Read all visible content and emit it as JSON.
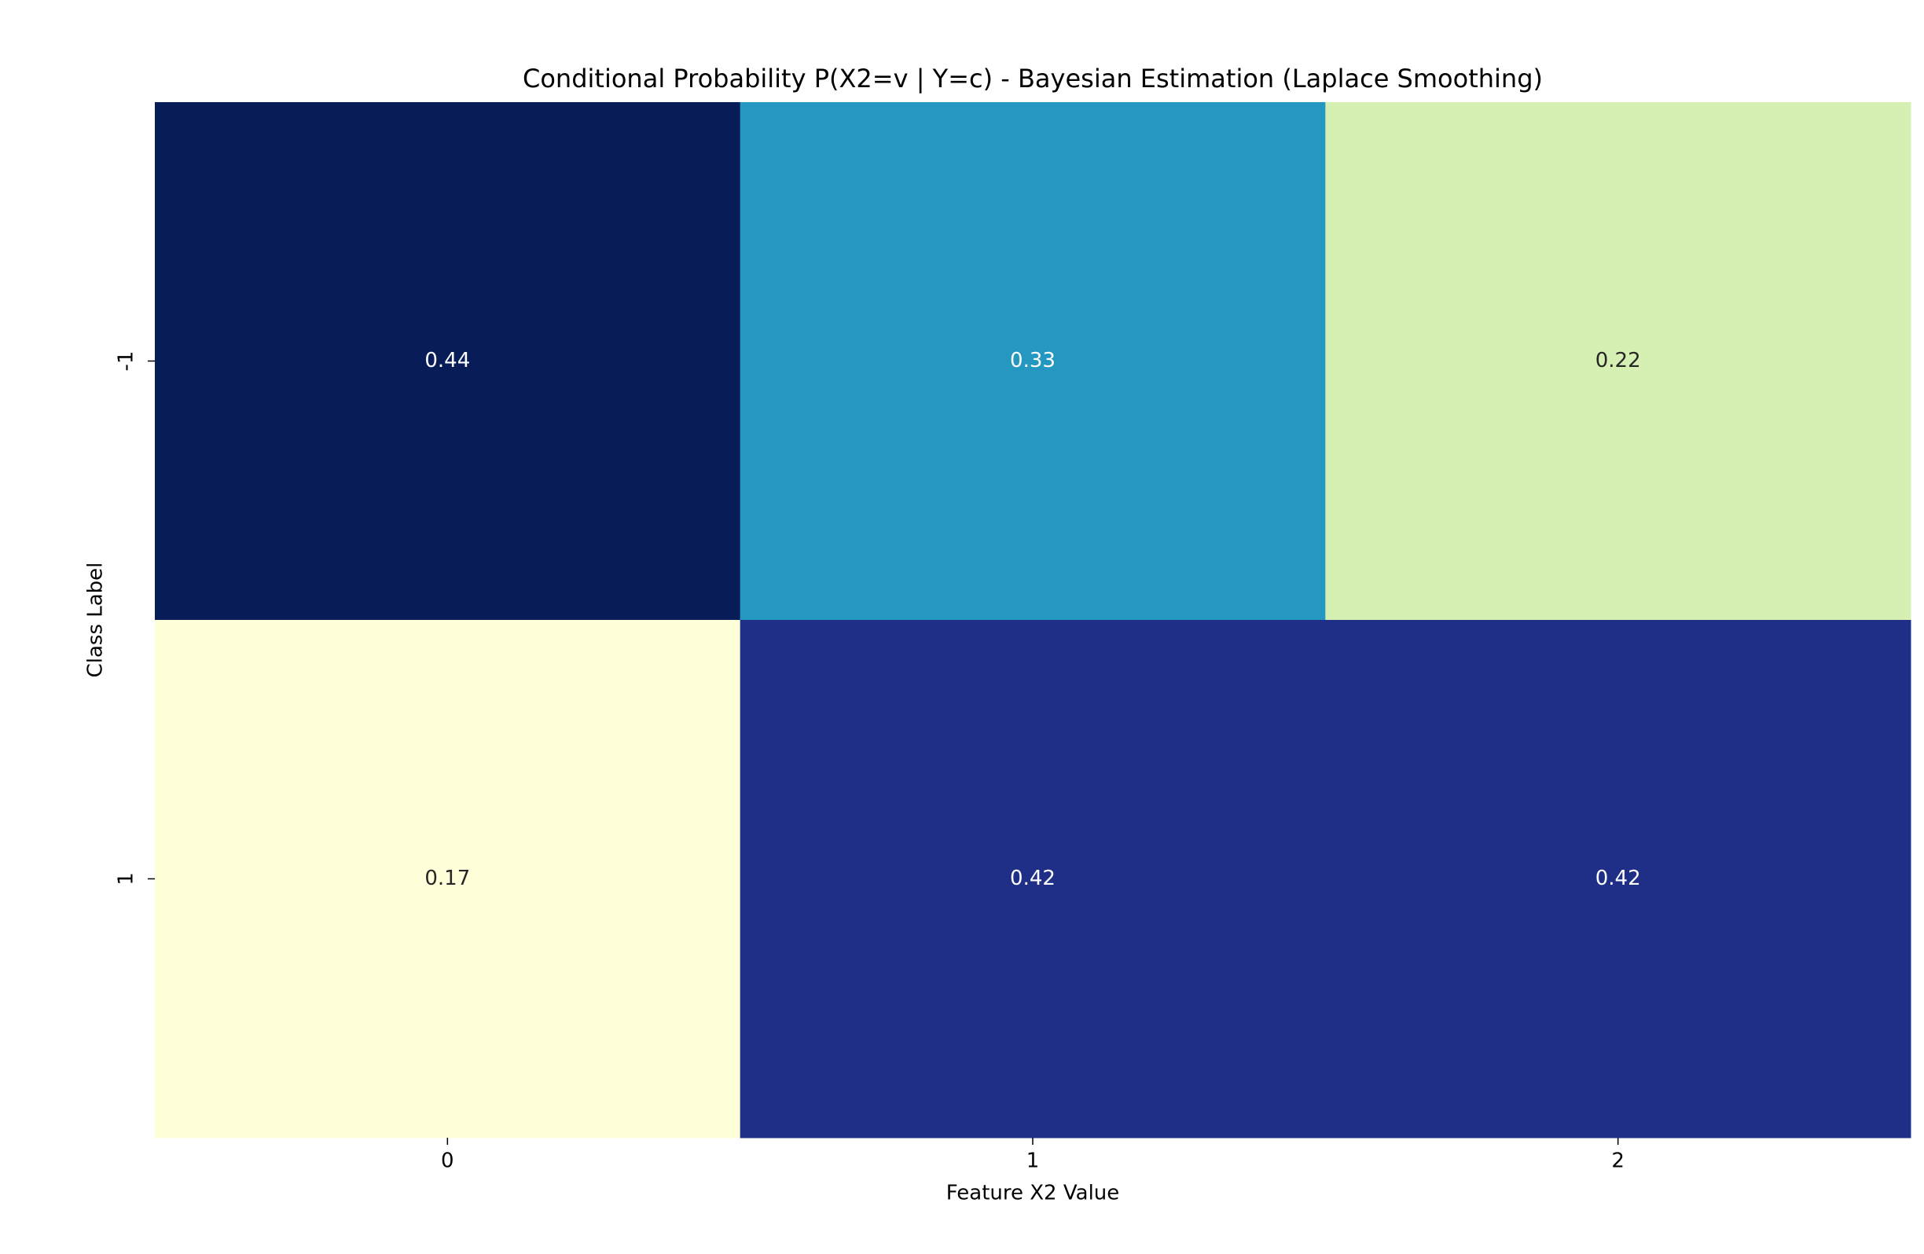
{
  "chart_data": {
    "type": "heatmap",
    "title": "Conditional Probability P(X2=v | Y=c) - Bayesian Estimation (Laplace Smoothing)",
    "x_label": "Feature X2 Value",
    "y_label": "Class Label",
    "x_categories": [
      "0",
      "1",
      "2"
    ],
    "y_categories": [
      "-1",
      "1"
    ],
    "values": [
      [
        0.44,
        0.33,
        0.22
      ],
      [
        0.17,
        0.42,
        0.42
      ]
    ],
    "colors": [
      [
        "#081d58",
        "#2498c1",
        "#d6efb3"
      ],
      [
        "#ffffd9",
        "#1f2f88",
        "#1f2f88"
      ]
    ],
    "colormap": "YlGnBu"
  }
}
